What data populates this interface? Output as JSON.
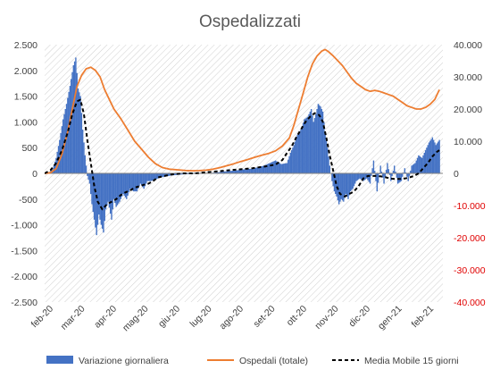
{
  "chart_data": {
    "type": "bar+line",
    "title": "Ospedalizzati",
    "x_ticks": [
      "feb-20",
      "mar-20",
      "apr-20",
      "mag-20",
      "giu-20",
      "lug-20",
      "ago-20",
      "set-20",
      "ott-20",
      "nov-20",
      "dic-20",
      "gen-21",
      "feb-21"
    ],
    "y_left": {
      "ylim": [
        -2500,
        2500
      ],
      "ticks": [
        "-2.500",
        "-2.000",
        "-1.500",
        "-1.000",
        "-500",
        "0",
        "500",
        "1.000",
        "1.500",
        "2.000",
        "2.500"
      ]
    },
    "y_right": {
      "ylim": [
        -40000,
        40000
      ],
      "ticks": [
        "-40.000",
        "-30.000",
        "-20.000",
        "-10.000",
        "0",
        "10.000",
        "20.000",
        "30.000",
        "40.000"
      ],
      "negative_color": "#e00000"
    },
    "series": [
      {
        "name": "Variazione giornaliera",
        "type": "bar",
        "axis": "left",
        "color": "#4472c4",
        "points": [
          [
            0,
            0
          ],
          [
            4,
            20
          ],
          [
            7,
            80
          ],
          [
            10,
            300
          ],
          [
            13,
            650
          ],
          [
            16,
            1050
          ],
          [
            19,
            1350
          ],
          [
            22,
            1700
          ],
          [
            25,
            2100
          ],
          [
            27,
            2250
          ],
          [
            29,
            1650
          ],
          [
            31,
            1500
          ],
          [
            33,
            850
          ],
          [
            35,
            350
          ],
          [
            37,
            -50
          ],
          [
            39,
            -200
          ],
          [
            41,
            -600
          ],
          [
            43,
            -900
          ],
          [
            45,
            -1200
          ],
          [
            47,
            -800
          ],
          [
            49,
            -1000
          ],
          [
            51,
            -1150
          ],
          [
            53,
            -700
          ],
          [
            55,
            -550
          ],
          [
            58,
            -900
          ],
          [
            60,
            -500
          ],
          [
            62,
            -650
          ],
          [
            65,
            -550
          ],
          [
            68,
            -400
          ],
          [
            71,
            -500
          ],
          [
            74,
            -300
          ],
          [
            77,
            -350
          ],
          [
            80,
            -350
          ],
          [
            83,
            -200
          ],
          [
            86,
            -300
          ],
          [
            89,
            -150
          ],
          [
            92,
            -150
          ],
          [
            96,
            -120
          ],
          [
            100,
            -80
          ],
          [
            105,
            -60
          ],
          [
            110,
            -40
          ],
          [
            115,
            -30
          ],
          [
            120,
            -20
          ],
          [
            125,
            -15
          ],
          [
            130,
            -10
          ],
          [
            135,
            -5
          ],
          [
            140,
            5
          ],
          [
            145,
            10
          ],
          [
            150,
            20
          ],
          [
            155,
            35
          ],
          [
            160,
            45
          ],
          [
            165,
            55
          ],
          [
            170,
            70
          ],
          [
            175,
            85
          ],
          [
            180,
            90
          ],
          [
            185,
            120
          ],
          [
            190,
            150
          ],
          [
            195,
            200
          ],
          [
            200,
            250
          ],
          [
            205,
            180
          ],
          [
            210,
            200
          ],
          [
            213,
            400
          ],
          [
            216,
            550
          ],
          [
            219,
            750
          ],
          [
            222,
            850
          ],
          [
            225,
            1050
          ],
          [
            228,
            1100
          ],
          [
            231,
            1250
          ],
          [
            233,
            1000
          ],
          [
            235,
            1150
          ],
          [
            237,
            1350
          ],
          [
            239,
            1300
          ],
          [
            241,
            1200
          ],
          [
            243,
            800
          ],
          [
            245,
            500
          ],
          [
            247,
            150
          ],
          [
            249,
            -150
          ],
          [
            251,
            -350
          ],
          [
            253,
            -450
          ],
          [
            255,
            -600
          ],
          [
            257,
            -500
          ],
          [
            259,
            -550
          ],
          [
            261,
            -400
          ],
          [
            263,
            -500
          ],
          [
            265,
            -350
          ],
          [
            267,
            -300
          ],
          [
            270,
            -150
          ],
          [
            273,
            -100
          ],
          [
            276,
            -150
          ],
          [
            279,
            -100
          ],
          [
            282,
            -200
          ],
          [
            285,
            250
          ],
          [
            288,
            -350
          ],
          [
            291,
            150
          ],
          [
            294,
            -200
          ],
          [
            297,
            200
          ],
          [
            300,
            -150
          ],
          [
            303,
            150
          ],
          [
            306,
            -200
          ],
          [
            309,
            -150
          ],
          [
            312,
            100
          ],
          [
            315,
            -150
          ],
          [
            318,
            150
          ],
          [
            321,
            200
          ],
          [
            324,
            350
          ],
          [
            327,
            300
          ],
          [
            330,
            450
          ],
          [
            333,
            600
          ],
          [
            336,
            700
          ],
          [
            339,
            550
          ],
          [
            342,
            650
          ]
        ]
      },
      {
        "name": "Ospedali (totale)",
        "type": "line",
        "axis": "right",
        "color": "#ed7d31",
        "points": [
          [
            0,
            0
          ],
          [
            5,
            200
          ],
          [
            10,
            1500
          ],
          [
            15,
            6000
          ],
          [
            20,
            13000
          ],
          [
            24,
            20000
          ],
          [
            28,
            27000
          ],
          [
            32,
            30500
          ],
          [
            36,
            32500
          ],
          [
            40,
            33000
          ],
          [
            44,
            32000
          ],
          [
            48,
            30000
          ],
          [
            52,
            26000
          ],
          [
            56,
            23000
          ],
          [
            60,
            20000
          ],
          [
            66,
            17000
          ],
          [
            72,
            13500
          ],
          [
            78,
            10000
          ],
          [
            84,
            7500
          ],
          [
            90,
            5000
          ],
          [
            96,
            3000
          ],
          [
            102,
            1800
          ],
          [
            108,
            1300
          ],
          [
            115,
            1100
          ],
          [
            122,
            900
          ],
          [
            128,
            800
          ],
          [
            134,
            850
          ],
          [
            140,
            1000
          ],
          [
            146,
            1300
          ],
          [
            152,
            1800
          ],
          [
            158,
            2400
          ],
          [
            164,
            3000
          ],
          [
            170,
            3700
          ],
          [
            176,
            4300
          ],
          [
            182,
            5000
          ],
          [
            188,
            5600
          ],
          [
            194,
            6200
          ],
          [
            200,
            7000
          ],
          [
            206,
            8500
          ],
          [
            212,
            11000
          ],
          [
            216,
            15000
          ],
          [
            220,
            20000
          ],
          [
            224,
            25000
          ],
          [
            228,
            30000
          ],
          [
            232,
            34000
          ],
          [
            236,
            36500
          ],
          [
            240,
            38000
          ],
          [
            243,
            38500
          ],
          [
            246,
            37800
          ],
          [
            250,
            36500
          ],
          [
            254,
            35000
          ],
          [
            258,
            33500
          ],
          [
            262,
            31500
          ],
          [
            266,
            29500
          ],
          [
            270,
            28000
          ],
          [
            274,
            27000
          ],
          [
            278,
            26000
          ],
          [
            282,
            25500
          ],
          [
            286,
            25800
          ],
          [
            290,
            25500
          ],
          [
            294,
            25000
          ],
          [
            298,
            24500
          ],
          [
            302,
            24000
          ],
          [
            306,
            23000
          ],
          [
            310,
            22000
          ],
          [
            314,
            21000
          ],
          [
            318,
            20500
          ],
          [
            322,
            20000
          ],
          [
            326,
            20000
          ],
          [
            330,
            20500
          ],
          [
            334,
            21500
          ],
          [
            338,
            23000
          ],
          [
            342,
            26000
          ]
        ]
      },
      {
        "name": "Media Mobile 15 giorni",
        "type": "line",
        "axis": "left",
        "dash": true,
        "color": "#000000",
        "points": [
          [
            0,
            0
          ],
          [
            5,
            60
          ],
          [
            10,
            200
          ],
          [
            15,
            450
          ],
          [
            20,
            800
          ],
          [
            24,
            1150
          ],
          [
            28,
            1400
          ],
          [
            31,
            1430
          ],
          [
            34,
            1150
          ],
          [
            37,
            650
          ],
          [
            40,
            200
          ],
          [
            43,
            -250
          ],
          [
            46,
            -550
          ],
          [
            50,
            -700
          ],
          [
            54,
            -600
          ],
          [
            58,
            -550
          ],
          [
            62,
            -500
          ],
          [
            66,
            -420
          ],
          [
            70,
            -370
          ],
          [
            74,
            -330
          ],
          [
            78,
            -280
          ],
          [
            82,
            -250
          ],
          [
            86,
            -220
          ],
          [
            90,
            -200
          ],
          [
            94,
            -150
          ],
          [
            98,
            -80
          ],
          [
            104,
            -50
          ],
          [
            110,
            -20
          ],
          [
            120,
            0
          ],
          [
            130,
            0
          ],
          [
            140,
            20
          ],
          [
            150,
            40
          ],
          [
            160,
            60
          ],
          [
            170,
            80
          ],
          [
            180,
            100
          ],
          [
            190,
            130
          ],
          [
            200,
            170
          ],
          [
            206,
            260
          ],
          [
            210,
            400
          ],
          [
            214,
            520
          ],
          [
            218,
            700
          ],
          [
            222,
            850
          ],
          [
            226,
            1000
          ],
          [
            230,
            1100
          ],
          [
            234,
            1170
          ],
          [
            238,
            1130
          ],
          [
            241,
            1000
          ],
          [
            244,
            700
          ],
          [
            247,
            350
          ],
          [
            250,
            50
          ],
          [
            253,
            -250
          ],
          [
            256,
            -400
          ],
          [
            260,
            -450
          ],
          [
            264,
            -400
          ],
          [
            268,
            -350
          ],
          [
            272,
            -250
          ],
          [
            276,
            -100
          ],
          [
            280,
            -50
          ],
          [
            284,
            -50
          ],
          [
            288,
            -50
          ],
          [
            292,
            -60
          ],
          [
            296,
            -80
          ],
          [
            300,
            -100
          ],
          [
            304,
            -110
          ],
          [
            308,
            -110
          ],
          [
            312,
            -100
          ],
          [
            316,
            -80
          ],
          [
            320,
            -50
          ],
          [
            324,
            0
          ],
          [
            328,
            100
          ],
          [
            332,
            200
          ],
          [
            336,
            330
          ],
          [
            340,
            420
          ],
          [
            342,
            450
          ]
        ]
      }
    ],
    "legend": [
      "Variazione giornaliera",
      "Ospedali (totale)",
      "Media Mobile 15 giorni"
    ],
    "legend_position": "bottom",
    "plot_background": "diagonal-hatch"
  }
}
